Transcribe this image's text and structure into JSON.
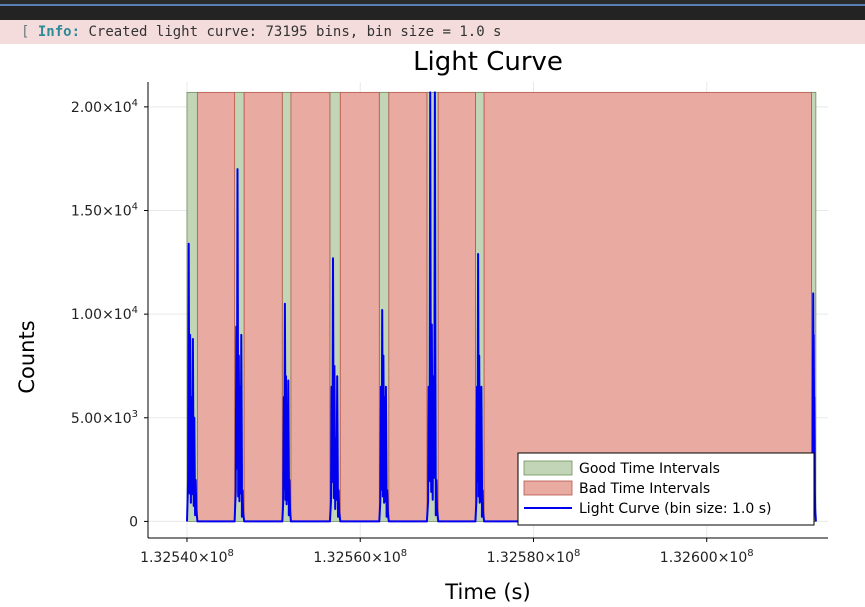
{
  "info": {
    "bracket": "[",
    "tag": "Info:",
    "message": "Created light curve: 73195 bins, bin size = 1.0 s"
  },
  "chart_data": {
    "type": "line",
    "title": "Light Curve",
    "xlabel": "Time (s)",
    "ylabel": "Counts",
    "xlim": [
      132535500,
      132614000
    ],
    "ylim": [
      -800,
      21200
    ],
    "x_ticks": [
      {
        "value": 132540000,
        "mantissa": "1.32540×10",
        "exp": "8"
      },
      {
        "value": 132560000,
        "mantissa": "1.32560×10",
        "exp": "8"
      },
      {
        "value": 132580000,
        "mantissa": "1.32580×10",
        "exp": "8"
      },
      {
        "value": 132600000,
        "mantissa": "1.32600×10",
        "exp": "8"
      }
    ],
    "y_ticks": [
      {
        "value": 0,
        "mantissa": "0",
        "exp": ""
      },
      {
        "value": 5000,
        "mantissa": "5.00×10",
        "exp": "3"
      },
      {
        "value": 10000,
        "mantissa": "1.00×10",
        "exp": "4"
      },
      {
        "value": 15000,
        "mantissa": "1.50×10",
        "exp": "4"
      },
      {
        "value": 20000,
        "mantissa": "2.00×10",
        "exp": "4"
      }
    ],
    "band_top": 20700,
    "gti": [
      [
        132540000,
        132541200
      ],
      [
        132545500,
        132546600
      ],
      [
        132551000,
        132552000
      ],
      [
        132556500,
        132557700
      ],
      [
        132562200,
        132563300
      ],
      [
        132567700,
        132569000
      ],
      [
        132573300,
        132574300
      ],
      [
        132612100,
        132612600
      ]
    ],
    "bti": [
      [
        132541200,
        132545500
      ],
      [
        132546600,
        132551000
      ],
      [
        132552000,
        132556500
      ],
      [
        132557700,
        132562200
      ],
      [
        132563300,
        132567700
      ],
      [
        132569000,
        132573300
      ],
      [
        132574300,
        132612100
      ]
    ],
    "light_curve_peaks": [
      [
        13400,
        9000,
        6000,
        8800,
        5000,
        2000
      ],
      [
        9400,
        17000,
        8000,
        6500,
        9000,
        1500
      ],
      [
        6000,
        10500,
        7000,
        5500,
        6800,
        2000
      ],
      [
        6500,
        12700,
        7500,
        4000,
        7000,
        1500
      ],
      [
        6500,
        10200,
        8000,
        6000,
        6500,
        1500
      ],
      [
        6500,
        20700,
        9500,
        7000,
        20700,
        2000
      ],
      [
        6500,
        12900,
        8000,
        6000,
        6500,
        1500
      ],
      [
        1500,
        11000,
        9000,
        6000,
        2000
      ]
    ],
    "series": [
      {
        "name": "Good Time Intervals",
        "color": "#c2d6b7",
        "edge": "#6f8f5c"
      },
      {
        "name": "Bad Time Intervals",
        "color": "#e8aaa1",
        "edge": "#b5574a"
      },
      {
        "name": "Light Curve (bin size: 1.0 s)",
        "color": "#0000ee"
      }
    ],
    "legend_position": "bottom-right",
    "grid": true
  }
}
